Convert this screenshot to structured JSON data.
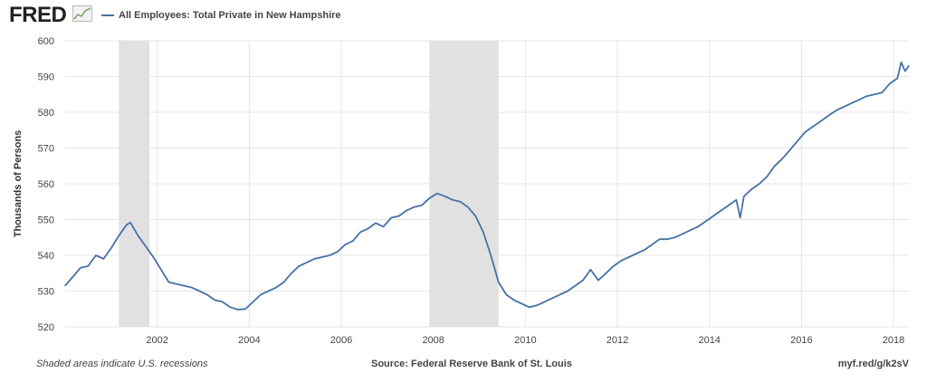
{
  "header": {
    "logo_text": "FRED",
    "series_title": "All Employees: Total Private in New Hampshire"
  },
  "footer": {
    "recession_note": "Shaded areas indicate U.S. recessions",
    "source": "Source: Federal Reserve Bank of St. Louis",
    "short_url": "myf.red/g/k2sV"
  },
  "colors": {
    "line": "#4572a7",
    "recession": "#e1e1e1",
    "grid": "#e6e6e6"
  },
  "chart_data": {
    "type": "line",
    "title": "All Employees: Total Private in New Hampshire",
    "xlabel": "",
    "ylabel": "Thousands of Persons",
    "xlim": [
      "2000-01",
      "2018-05"
    ],
    "ylim": [
      520,
      600
    ],
    "y_ticks": [
      520,
      530,
      540,
      550,
      560,
      570,
      580,
      590,
      600
    ],
    "x_ticks": [
      "2002",
      "2004",
      "2006",
      "2008",
      "2010",
      "2012",
      "2014",
      "2016",
      "2018"
    ],
    "grid": true,
    "recessions": [
      [
        "2001-03",
        "2001-11"
      ],
      [
        "2007-12",
        "2009-06"
      ]
    ],
    "series": [
      {
        "points": [
          [
            "2000-01",
            531.5
          ],
          [
            "2000-03",
            534.0
          ],
          [
            "2000-05",
            536.5
          ],
          [
            "2000-07",
            537.0
          ],
          [
            "2000-09",
            540.0
          ],
          [
            "2000-11",
            539.0
          ],
          [
            "2001-01",
            542.0
          ],
          [
            "2001-03",
            545.5
          ],
          [
            "2001-05",
            548.5
          ],
          [
            "2001-06",
            549.2
          ],
          [
            "2001-08",
            545.5
          ],
          [
            "2001-10",
            542.5
          ],
          [
            "2001-12",
            539.5
          ],
          [
            "2002-02",
            536.0
          ],
          [
            "2002-04",
            532.5
          ],
          [
            "2002-06",
            532.0
          ],
          [
            "2002-08",
            531.5
          ],
          [
            "2002-10",
            531.0
          ],
          [
            "2002-12",
            530.0
          ],
          [
            "2003-02",
            529.0
          ],
          [
            "2003-04",
            527.5
          ],
          [
            "2003-06",
            527.0
          ],
          [
            "2003-08",
            525.5
          ],
          [
            "2003-10",
            524.8
          ],
          [
            "2003-12",
            525.0
          ],
          [
            "2004-02",
            527.0
          ],
          [
            "2004-04",
            529.0
          ],
          [
            "2004-06",
            530.0
          ],
          [
            "2004-08",
            531.0
          ],
          [
            "2004-10",
            532.5
          ],
          [
            "2004-12",
            535.0
          ],
          [
            "2005-02",
            537.0
          ],
          [
            "2005-04",
            538.0
          ],
          [
            "2005-06",
            539.0
          ],
          [
            "2005-08",
            539.5
          ],
          [
            "2005-10",
            540.0
          ],
          [
            "2005-12",
            541.0
          ],
          [
            "2006-02",
            543.0
          ],
          [
            "2006-04",
            544.0
          ],
          [
            "2006-06",
            546.5
          ],
          [
            "2006-08",
            547.5
          ],
          [
            "2006-10",
            549.0
          ],
          [
            "2006-12",
            548.0
          ],
          [
            "2007-02",
            550.5
          ],
          [
            "2007-04",
            551.0
          ],
          [
            "2007-06",
            552.5
          ],
          [
            "2007-08",
            553.5
          ],
          [
            "2007-10",
            554.0
          ],
          [
            "2007-12",
            556.0
          ],
          [
            "2008-02",
            557.3
          ],
          [
            "2008-04",
            556.5
          ],
          [
            "2008-06",
            555.5
          ],
          [
            "2008-08",
            555.0
          ],
          [
            "2008-10",
            553.5
          ],
          [
            "2008-12",
            551.0
          ],
          [
            "2009-02",
            546.5
          ],
          [
            "2009-04",
            540.0
          ],
          [
            "2009-06",
            532.5
          ],
          [
            "2009-08",
            529.0
          ],
          [
            "2009-10",
            527.5
          ],
          [
            "2009-12",
            526.5
          ],
          [
            "2010-02",
            525.5
          ],
          [
            "2010-04",
            526.0
          ],
          [
            "2010-06",
            527.0
          ],
          [
            "2010-08",
            528.0
          ],
          [
            "2010-10",
            529.0
          ],
          [
            "2010-12",
            530.0
          ],
          [
            "2011-02",
            531.5
          ],
          [
            "2011-04",
            533.0
          ],
          [
            "2011-06",
            536.0
          ],
          [
            "2011-08",
            533.0
          ],
          [
            "2011-10",
            535.0
          ],
          [
            "2011-12",
            537.0
          ],
          [
            "2012-02",
            538.5
          ],
          [
            "2012-04",
            539.5
          ],
          [
            "2012-06",
            540.5
          ],
          [
            "2012-08",
            541.5
          ],
          [
            "2012-10",
            543.0
          ],
          [
            "2012-12",
            544.5
          ],
          [
            "2013-02",
            544.5
          ],
          [
            "2013-04",
            545.0
          ],
          [
            "2013-06",
            546.0
          ],
          [
            "2013-08",
            547.0
          ],
          [
            "2013-10",
            548.0
          ],
          [
            "2013-12",
            549.5
          ],
          [
            "2014-02",
            551.0
          ],
          [
            "2014-04",
            552.5
          ],
          [
            "2014-06",
            554.0
          ],
          [
            "2014-08",
            555.5
          ],
          [
            "2014-09",
            550.5
          ],
          [
            "2014-10",
            556.5
          ],
          [
            "2014-12",
            558.5
          ],
          [
            "2015-02",
            560.0
          ],
          [
            "2015-04",
            562.0
          ],
          [
            "2015-06",
            565.0
          ],
          [
            "2015-08",
            567.0
          ],
          [
            "2015-10",
            569.5
          ],
          [
            "2015-12",
            572.0
          ],
          [
            "2016-02",
            574.5
          ],
          [
            "2016-04",
            576.0
          ],
          [
            "2016-06",
            577.5
          ],
          [
            "2016-08",
            579.0
          ],
          [
            "2016-10",
            580.5
          ],
          [
            "2016-12",
            581.5
          ],
          [
            "2017-02",
            582.5
          ],
          [
            "2017-04",
            583.5
          ],
          [
            "2017-06",
            584.5
          ],
          [
            "2017-08",
            585.0
          ],
          [
            "2017-10",
            585.5
          ],
          [
            "2017-12",
            588.0
          ],
          [
            "2018-02",
            589.5
          ],
          [
            "2018-03",
            594.0
          ],
          [
            "2018-04",
            591.5
          ],
          [
            "2018-05",
            593.0
          ]
        ]
      }
    ]
  }
}
